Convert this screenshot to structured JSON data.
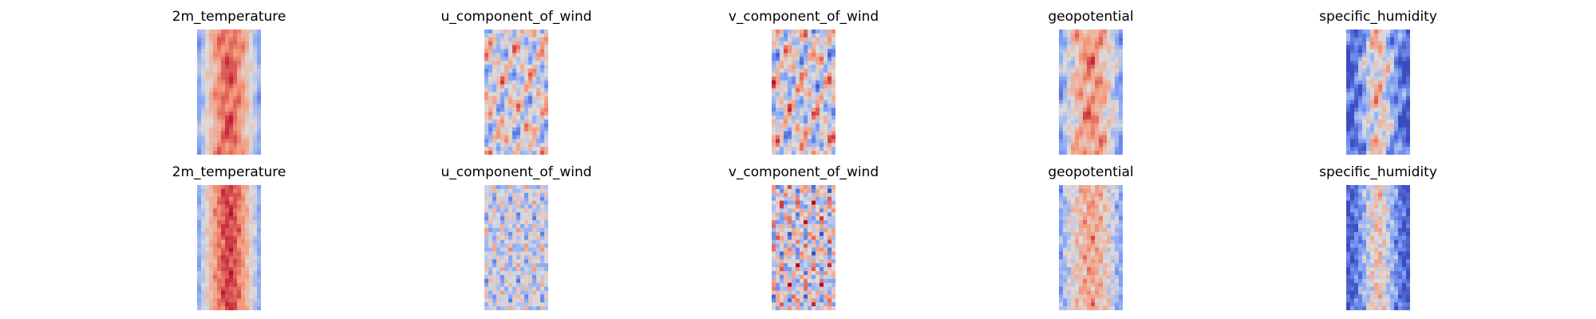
{
  "figure": {
    "rows": [
      {
        "panels": [
          {
            "title": "2m_temperature",
            "pattern": "temperature-smooth"
          },
          {
            "title": "u_component_of_wind",
            "pattern": "wind-u-smooth"
          },
          {
            "title": "v_component_of_wind",
            "pattern": "wind-v-smooth"
          },
          {
            "title": "geopotential",
            "pattern": "geopotential-smooth"
          },
          {
            "title": "specific_humidity",
            "pattern": "humidity-smooth"
          }
        ]
      },
      {
        "panels": [
          {
            "title": "2m_temperature",
            "pattern": "temperature-noisy"
          },
          {
            "title": "u_component_of_wind",
            "pattern": "wind-u-noisy"
          },
          {
            "title": "v_component_of_wind",
            "pattern": "wind-v-noisy"
          },
          {
            "title": "geopotential",
            "pattern": "geopotential-noisy"
          },
          {
            "title": "specific_humidity",
            "pattern": "humidity-noisy"
          }
        ]
      }
    ],
    "colormap": [
      "#3b4cc0",
      "#b40426"
    ]
  }
}
